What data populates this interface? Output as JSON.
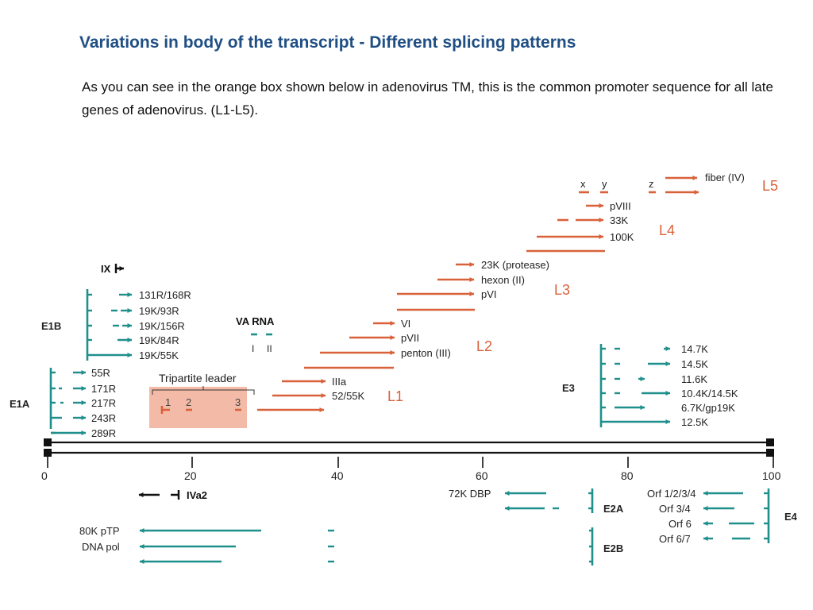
{
  "slide": {
    "title": "Variations in body of the transcript - Different splicing patterns",
    "body": "As you can see in the orange box shown below in adenovirus TM, this is the common promoter sequence for all late genes of adenovirus. (L1-L5)."
  },
  "colors": {
    "orange": "#d8613a",
    "teal": "#1f8f8b",
    "black": "#111111",
    "box": "#f3bba7",
    "blue": "#1f4f84"
  },
  "axis": {
    "ticks": [
      "0",
      "20",
      "40",
      "60",
      "80",
      "100"
    ]
  },
  "late_region": {
    "L1": {
      "label": "L1",
      "genes": [
        "IIIa",
        "52/55K"
      ]
    },
    "L2": {
      "label": "L2",
      "genes": [
        "VI",
        "pVII",
        "penton (III)"
      ]
    },
    "L3": {
      "label": "L3",
      "genes": [
        "23K (protease)",
        "hexon (II)",
        "pVI"
      ]
    },
    "L4": {
      "label": "L4",
      "genes": [
        "pVIII",
        "33K",
        "100K"
      ]
    },
    "L5": {
      "label": "L5",
      "genes": [
        "fiber (IV)"
      ],
      "leaders": [
        "x",
        "y",
        "z"
      ]
    },
    "tripartite_leader": {
      "label": "Tripartite leader",
      "exons": [
        "1",
        "2",
        "3"
      ]
    }
  },
  "early_region": {
    "E1A": {
      "label": "E1A",
      "products": [
        "55R",
        "171R",
        "217R",
        "243R",
        "289R"
      ]
    },
    "E1B": {
      "label": "E1B",
      "products": [
        "131R/168R",
        "19K/93R",
        "19K/156R",
        "19K/84R",
        "19K/55K"
      ]
    },
    "IX": {
      "label": "IX"
    },
    "VA_RNA": {
      "label": "VA RNA",
      "genes": [
        "I",
        "II"
      ]
    },
    "E3": {
      "label": "E3",
      "products": [
        "14.7K",
        "14.5K",
        "11.6K",
        "10.4K/14.5K",
        "6.7K/gp19K",
        "12.5K"
      ]
    },
    "IVa2": {
      "label": "IVa2"
    },
    "E2A": {
      "label": "E2A",
      "products": [
        "72K DBP"
      ]
    },
    "E2B": {
      "label": "E2B",
      "products": [
        "80K pTP",
        "DNA pol"
      ]
    },
    "E4": {
      "label": "E4",
      "products": [
        "Orf 1/2/3/4",
        "Orf 3/4",
        "Orf 6",
        "Orf 6/7"
      ]
    }
  }
}
